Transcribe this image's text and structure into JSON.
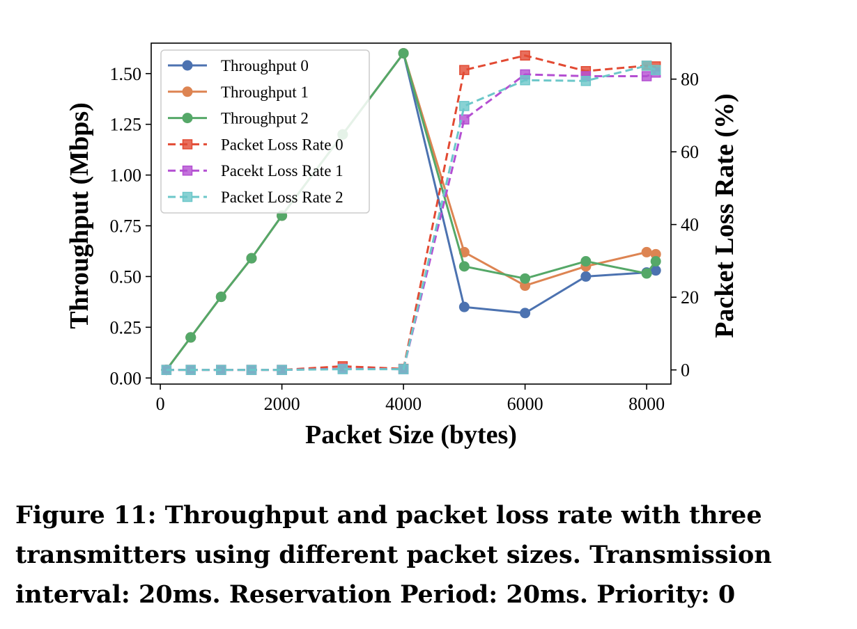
{
  "caption": "Figure 11: Throughput and packet loss rate with three transmitters using different packet sizes. Transmission interval: 20ms. Reservation Period: 20ms. Priority: 0",
  "chart_data": {
    "type": "line",
    "xlabel": "Packet Size (bytes)",
    "ylabel": "Throughput (Mbps)",
    "y2label": "Packet Loss Rate (%)",
    "xlim": [
      -150,
      8400
    ],
    "ylim": [
      -0.03,
      1.65
    ],
    "y2lim": [
      -3.9,
      89.9
    ],
    "x_ticks": [
      0,
      2000,
      4000,
      6000,
      8000
    ],
    "x_tick_labels": [
      "0",
      "2000",
      "4000",
      "6000",
      "8000"
    ],
    "y_ticks": [
      0,
      0.25,
      0.5,
      0.75,
      1.0,
      1.25,
      1.5
    ],
    "y_tick_labels": [
      "0.00",
      "0.25",
      "0.50",
      "0.75",
      "1.00",
      "1.25",
      "1.50"
    ],
    "y2_ticks": [
      0,
      20,
      40,
      60,
      80
    ],
    "y2_tick_labels": [
      "0",
      "20",
      "40",
      "60",
      "80"
    ],
    "grid": false,
    "legend_position": "top-left",
    "series": [
      {
        "name": "Throughput 0",
        "axis": "left",
        "color": "#4c72b0",
        "marker": "circle",
        "dash": "solid",
        "x": [
          100,
          500,
          1000,
          1500,
          2000,
          3000,
          4000,
          5000,
          6000,
          7000,
          8000,
          8150
        ],
        "y": [
          0.04,
          0.2,
          0.4,
          0.59,
          0.8,
          1.2,
          1.6,
          0.35,
          0.32,
          0.5,
          0.52,
          0.53
        ]
      },
      {
        "name": "Throughput 1",
        "axis": "left",
        "color": "#dd8452",
        "marker": "circle",
        "dash": "solid",
        "x": [
          100,
          500,
          1000,
          1500,
          2000,
          3000,
          4000,
          5000,
          6000,
          7000,
          8000,
          8150
        ],
        "y": [
          0.04,
          0.2,
          0.4,
          0.59,
          0.8,
          1.2,
          1.6,
          0.62,
          0.455,
          0.55,
          0.62,
          0.61
        ]
      },
      {
        "name": "Throughput 2",
        "axis": "left",
        "color": "#55a868",
        "marker": "circle",
        "dash": "solid",
        "x": [
          100,
          500,
          1000,
          1500,
          2000,
          3000,
          4000,
          5000,
          6000,
          7000,
          8000,
          8150
        ],
        "y": [
          0.04,
          0.2,
          0.4,
          0.59,
          0.8,
          1.2,
          1.6,
          0.55,
          0.49,
          0.575,
          0.515,
          0.575
        ]
      },
      {
        "name": "Packet Loss Rate 0",
        "axis": "right",
        "color": "#e24a33",
        "marker": "square",
        "dash": "dashed",
        "x": [
          100,
          500,
          1000,
          1500,
          2000,
          3000,
          4000,
          5000,
          6000,
          7000,
          8000,
          8150
        ],
        "y": [
          0,
          0,
          0,
          0,
          0,
          1,
          0.3,
          82.5,
          86.5,
          82.2,
          83.7,
          83.5
        ]
      },
      {
        "name": "Pacekt Loss Rate 1",
        "axis": "right",
        "color": "#b44fd2",
        "marker": "square",
        "dash": "dashed",
        "x": [
          100,
          500,
          1000,
          1500,
          2000,
          3000,
          4000,
          5000,
          6000,
          7000,
          8000,
          8150
        ],
        "y": [
          0,
          0,
          0,
          0,
          0,
          0.3,
          0.2,
          68.9,
          81.3,
          80.8,
          80.8,
          81.8
        ]
      },
      {
        "name": "Packet Loss Rate 2",
        "axis": "right",
        "color": "#6cc7c9",
        "marker": "square",
        "dash": "dashed",
        "x": [
          100,
          500,
          1000,
          1500,
          2000,
          3000,
          4000,
          5000,
          6000,
          7000,
          8000,
          8150
        ],
        "y": [
          0,
          0,
          0,
          0,
          0,
          0.2,
          0.2,
          72.6,
          79.7,
          79.5,
          83.7,
          82.5
        ]
      }
    ]
  }
}
